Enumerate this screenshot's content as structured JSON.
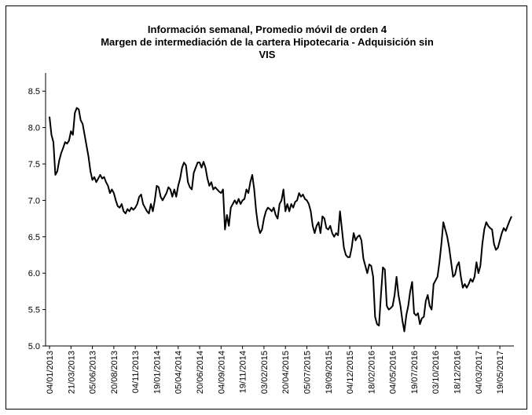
{
  "chart_data": {
    "type": "line",
    "title": [
      "Información semanal, Promedio móvil de orden 4",
      "Margen de intermediación de la cartera  Hipotecaria - Adquisición sin",
      "VIS"
    ],
    "categories": [
      "04/01/2013",
      null,
      null,
      null,
      null,
      null,
      null,
      null,
      null,
      null,
      null,
      "21/03/2013",
      null,
      null,
      null,
      null,
      null,
      null,
      null,
      null,
      null,
      null,
      "05/06/2013",
      null,
      null,
      null,
      null,
      null,
      null,
      null,
      null,
      null,
      null,
      "20/08/2013",
      null,
      null,
      null,
      null,
      null,
      null,
      null,
      null,
      null,
      null,
      "04/11/2013",
      null,
      null,
      null,
      null,
      null,
      null,
      null,
      null,
      null,
      null,
      "19/01/2014",
      null,
      null,
      null,
      null,
      null,
      null,
      null,
      null,
      null,
      null,
      "05/04/2014",
      null,
      null,
      null,
      null,
      null,
      null,
      null,
      null,
      null,
      null,
      "20/06/2014",
      null,
      null,
      null,
      null,
      null,
      null,
      null,
      null,
      null,
      null,
      "04/09/2014",
      null,
      null,
      null,
      null,
      null,
      null,
      null,
      null,
      null,
      null,
      "19/11/2014",
      null,
      null,
      null,
      null,
      null,
      null,
      null,
      null,
      null,
      null,
      "03/02/2015",
      null,
      null,
      null,
      null,
      null,
      null,
      null,
      null,
      null,
      null,
      "20/04/2015",
      null,
      null,
      null,
      null,
      null,
      null,
      null,
      null,
      null,
      null,
      "05/07/2015",
      null,
      null,
      null,
      null,
      null,
      null,
      null,
      null,
      null,
      null,
      "19/09/2015",
      null,
      null,
      null,
      null,
      null,
      null,
      null,
      null,
      null,
      null,
      "04/12/2015",
      null,
      null,
      null,
      null,
      null,
      null,
      null,
      null,
      null,
      null,
      "18/02/2016",
      null,
      null,
      null,
      null,
      null,
      null,
      null,
      null,
      null,
      null,
      "04/05/2016",
      null,
      null,
      null,
      null,
      null,
      null,
      null,
      null,
      null,
      null,
      "19/07/2016",
      null,
      null,
      null,
      null,
      null,
      null,
      null,
      null,
      null,
      null,
      "03/10/2016",
      null,
      null,
      null,
      null,
      null,
      null,
      null,
      null,
      null,
      null,
      "18/12/2016",
      null,
      null,
      null,
      null,
      null,
      null,
      null,
      null,
      null,
      null,
      "04/03/2017",
      null,
      null,
      null,
      null,
      null,
      null,
      null,
      null,
      null,
      null,
      "19/05/2017",
      null,
      null,
      null,
      null,
      null,
      null
    ],
    "series": [
      {
        "color": "#000000",
        "values": [
          8.15,
          7.9,
          7.8,
          7.35,
          7.4,
          7.55,
          7.65,
          7.72,
          7.8,
          7.78,
          7.82,
          7.95,
          7.9,
          8.2,
          8.27,
          8.25,
          8.1,
          8.05,
          7.9,
          7.75,
          7.6,
          7.4,
          7.28,
          7.32,
          7.25,
          7.3,
          7.35,
          7.3,
          7.32,
          7.25,
          7.2,
          7.1,
          7.15,
          7.1,
          7.0,
          6.92,
          6.9,
          6.95,
          6.85,
          6.82,
          6.88,
          6.85,
          6.9,
          6.87,
          6.9,
          6.95,
          7.05,
          7.08,
          6.95,
          6.9,
          6.85,
          6.82,
          6.95,
          6.85,
          7.0,
          7.2,
          7.18,
          7.05,
          7.0,
          7.05,
          7.1,
          7.18,
          7.15,
          7.05,
          7.15,
          7.05,
          7.2,
          7.3,
          7.45,
          7.52,
          7.48,
          7.25,
          7.18,
          7.15,
          7.38,
          7.45,
          7.52,
          7.52,
          7.45,
          7.53,
          7.45,
          7.3,
          7.2,
          7.25,
          7.15,
          7.18,
          7.15,
          7.12,
          7.1,
          7.15,
          6.6,
          6.8,
          6.65,
          6.9,
          6.95,
          7.0,
          6.95,
          7.02,
          6.95,
          7.0,
          7.02,
          7.15,
          7.1,
          7.25,
          7.35,
          7.15,
          6.85,
          6.65,
          6.55,
          6.6,
          6.75,
          6.85,
          6.9,
          6.88,
          6.85,
          6.9,
          6.8,
          6.75,
          6.95,
          7.0,
          7.15,
          6.85,
          6.95,
          6.85,
          6.95,
          6.9,
          6.98,
          7.0,
          7.1,
          7.05,
          7.08,
          7.02,
          7.0,
          6.95,
          6.85,
          6.65,
          6.55,
          6.65,
          6.7,
          6.55,
          6.78,
          6.75,
          6.62,
          6.6,
          6.65,
          6.55,
          6.5,
          6.55,
          6.52,
          6.85,
          6.6,
          6.35,
          6.25,
          6.22,
          6.22,
          6.35,
          6.55,
          6.45,
          6.5,
          6.52,
          6.45,
          6.2,
          6.1,
          6.0,
          6.12,
          6.1,
          5.95,
          5.4,
          5.3,
          5.28,
          5.7,
          6.08,
          6.05,
          5.55,
          5.5,
          5.52,
          5.55,
          5.7,
          5.95,
          5.7,
          5.55,
          5.35,
          5.2,
          5.42,
          5.55,
          5.75,
          5.88,
          5.45,
          5.42,
          5.45,
          5.3,
          5.38,
          5.4,
          5.62,
          5.7,
          5.55,
          5.5,
          5.85,
          5.9,
          5.95,
          6.15,
          6.4,
          6.7,
          6.6,
          6.5,
          6.35,
          6.15,
          5.95,
          5.98,
          6.1,
          6.15,
          5.95,
          5.8,
          5.85,
          5.8,
          5.85,
          5.92,
          5.88,
          5.95,
          6.15,
          6.0,
          6.1,
          6.4,
          6.6,
          6.7,
          6.65,
          6.62,
          6.6,
          6.4,
          6.32,
          6.35,
          6.45,
          6.55,
          6.62,
          6.58,
          6.65,
          6.72,
          6.78
        ]
      }
    ],
    "ylim": [
      5,
      8.75
    ],
    "yticks": [
      {
        "value": 5,
        "label": "5.0"
      },
      5.5,
      {
        "value": 6,
        "label": "6.0"
      },
      6.5,
      {
        "value": 7,
        "label": "7.0"
      },
      7.5,
      {
        "value": 8,
        "label": "8.0"
      },
      8.5
    ],
    "grid": false
  }
}
